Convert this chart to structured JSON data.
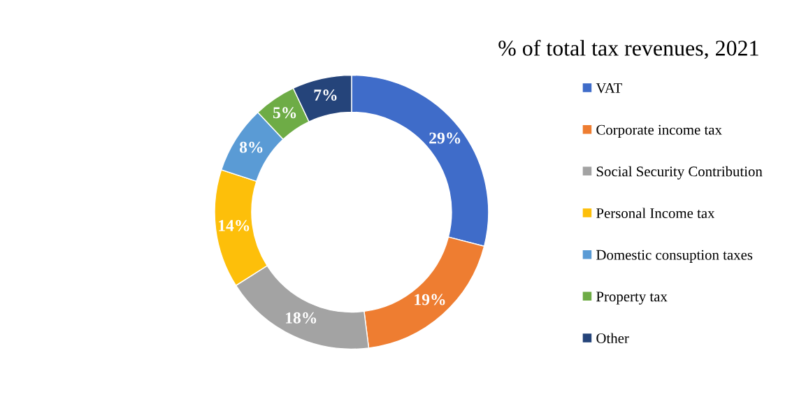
{
  "chart_data": {
    "type": "donut",
    "title": "% of total tax revenues, 2021",
    "categories": [
      "VAT",
      "Corporate income tax",
      "Social Security Contribution",
      "Personal Income tax",
      "Domestic consuption taxes",
      "Property tax",
      "Other"
    ],
    "values": [
      29,
      19,
      18,
      14,
      8,
      5,
      7
    ],
    "colors": [
      "#3f6cc9",
      "#ee7d31",
      "#a3a3a3",
      "#fdbf0a",
      "#5a9bd5",
      "#6eac46",
      "#25447a"
    ],
    "value_labels": [
      "29%",
      "19%",
      "18%",
      "14%",
      "8%",
      "5%",
      "7%"
    ],
    "legend": "right"
  }
}
